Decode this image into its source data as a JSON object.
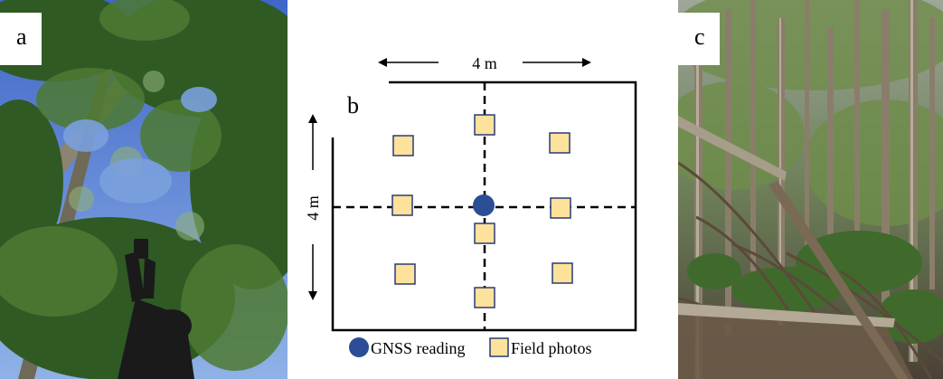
{
  "panels": {
    "a": {
      "label": "a"
    },
    "b": {
      "label": "b"
    },
    "c": {
      "label": "c"
    }
  },
  "diagram": {
    "width_label": "4 m",
    "height_label": "4 m",
    "legend": {
      "gnss": "GNSS reading",
      "photos": "Field photos"
    }
  },
  "colors": {
    "photo_fill": "#fce29a",
    "photo_stroke": "#2b3a78",
    "gnss_fill": "#2b4d96"
  }
}
